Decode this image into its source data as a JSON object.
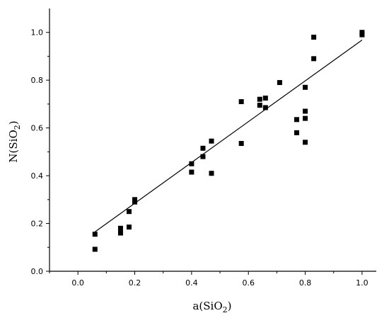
{
  "chart_data": {
    "type": "scatter",
    "title": "",
    "xlabel": "a(SiO",
    "xlabel_sub": "2",
    "xlabel_end": ")",
    "ylabel": "N(SiO",
    "ylabel_sub": "2",
    "ylabel_end": ")",
    "xlim": [
      -0.1,
      1.05
    ],
    "ylim": [
      0.0,
      1.1
    ],
    "xticks": [
      0.0,
      0.2,
      0.4,
      0.6,
      0.8,
      1.0
    ],
    "xtick_labels": [
      "0.0",
      "0.2",
      "0.4",
      "0.6",
      "0.8",
      "1.0"
    ],
    "yticks": [
      0.0,
      0.2,
      0.4,
      0.6,
      0.8,
      1.0
    ],
    "ytick_labels": [
      "0.0",
      "0.2",
      "0.4",
      "0.6",
      "0.8",
      "1.0"
    ],
    "grid": false,
    "marker": "filled-square",
    "series": [
      {
        "points": [
          [
            0.06,
            0.155
          ],
          [
            0.06,
            0.092
          ],
          [
            0.15,
            0.18
          ],
          [
            0.15,
            0.16
          ],
          [
            0.18,
            0.25
          ],
          [
            0.18,
            0.185
          ],
          [
            0.2,
            0.3
          ],
          [
            0.2,
            0.29
          ],
          [
            0.4,
            0.45
          ],
          [
            0.4,
            0.415
          ],
          [
            0.44,
            0.515
          ],
          [
            0.44,
            0.48
          ],
          [
            0.47,
            0.545
          ],
          [
            0.47,
            0.41
          ],
          [
            0.575,
            0.71
          ],
          [
            0.575,
            0.535
          ],
          [
            0.64,
            0.72
          ],
          [
            0.64,
            0.695
          ],
          [
            0.66,
            0.725
          ],
          [
            0.66,
            0.685
          ],
          [
            0.71,
            0.79
          ],
          [
            0.77,
            0.635
          ],
          [
            0.77,
            0.58
          ],
          [
            0.8,
            0.77
          ],
          [
            0.8,
            0.67
          ],
          [
            0.8,
            0.64
          ],
          [
            0.8,
            0.54
          ],
          [
            0.83,
            0.98
          ],
          [
            0.83,
            0.89
          ],
          [
            1.0,
            1.0
          ],
          [
            1.0,
            0.99
          ]
        ]
      }
    ],
    "fit_line": {
      "x": [
        0.06,
        1.0
      ],
      "y": [
        0.165,
        0.968
      ]
    }
  }
}
